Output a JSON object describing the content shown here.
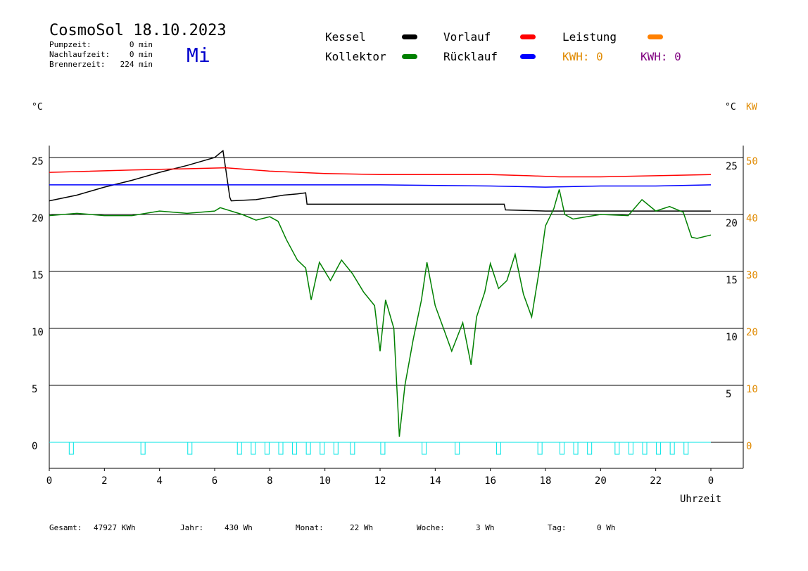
{
  "header": {
    "title": "CosmoSol 18.10.2023",
    "weekday": "Mi",
    "stats": [
      {
        "label": "Pumpzeit:",
        "value": "0 min"
      },
      {
        "label": "Nachlaufzeit:",
        "value": "0 min"
      },
      {
        "label": "Brennerzeit:",
        "value": "224 min"
      }
    ]
  },
  "legend": {
    "items": [
      {
        "label": "Kessel",
        "color": "#000000"
      },
      {
        "label": "Vorlauf",
        "color": "#ff0000"
      },
      {
        "label": "Leistung",
        "color": "#ff8000"
      },
      {
        "label": "Kollektor",
        "color": "#008000"
      },
      {
        "label": "Rücklauf",
        "color": "#0000ff"
      }
    ],
    "kwh": [
      {
        "text": "KWH: 0",
        "color": "#e08a00"
      },
      {
        "text": "KWH: 0",
        "color": "#800080"
      }
    ]
  },
  "axes": {
    "left_unit": "°C",
    "right_unit": "°C",
    "right_unit2": "KW",
    "x_title": "Uhrzeit"
  },
  "footer": [
    {
      "label": "Gesamt:",
      "value": "47927 KWh"
    },
    {
      "label": "Jahr:",
      "value": "430 Wh"
    },
    {
      "label": "Monat:",
      "value": "22 Wh"
    },
    {
      "label": "Woche:",
      "value": "3 Wh"
    },
    {
      "label": "Tag:",
      "value": "0 Wh"
    }
  ],
  "chart_data": {
    "type": "line",
    "x_unit": "hour",
    "xlim": [
      0,
      24
    ],
    "x_ticks": [
      "0",
      "2",
      "4",
      "6",
      "8",
      "10",
      "12",
      "14",
      "16",
      "18",
      "20",
      "22",
      "0"
    ],
    "ylim_left": [
      -2,
      26
    ],
    "y_ticks_left": [
      0,
      5,
      10,
      15,
      20,
      25
    ],
    "y_ticks_right_inner": [
      5,
      10,
      15,
      20,
      25
    ],
    "y_ticks_right_kw": [
      0,
      10,
      20,
      30,
      40,
      50
    ],
    "grid": "horizontal",
    "series": [
      {
        "name": "Kessel",
        "color": "#000000",
        "points": [
          [
            0,
            21.2
          ],
          [
            1,
            21.7
          ],
          [
            2,
            22.4
          ],
          [
            3,
            23.0
          ],
          [
            4,
            23.7
          ],
          [
            5,
            24.3
          ],
          [
            6,
            25.0
          ],
          [
            6.3,
            25.6
          ],
          [
            6.4,
            24.0
          ],
          [
            6.55,
            21.5
          ],
          [
            6.6,
            21.2
          ],
          [
            7.5,
            21.3
          ],
          [
            8.5,
            21.7
          ],
          [
            9.0,
            21.8
          ],
          [
            9.3,
            21.9
          ],
          [
            9.35,
            20.9
          ],
          [
            16.5,
            20.9
          ],
          [
            16.55,
            20.4
          ],
          [
            18,
            20.3
          ],
          [
            24,
            20.3
          ]
        ]
      },
      {
        "name": "Vorlauf",
        "color": "#ff0000",
        "points": [
          [
            0,
            23.7
          ],
          [
            3,
            23.9
          ],
          [
            6.4,
            24.1
          ],
          [
            8,
            23.8
          ],
          [
            10,
            23.6
          ],
          [
            12,
            23.5
          ],
          [
            14,
            23.5
          ],
          [
            16,
            23.5
          ],
          [
            17.4,
            23.4
          ],
          [
            18.5,
            23.3
          ],
          [
            20,
            23.3
          ],
          [
            22,
            23.4
          ],
          [
            24,
            23.5
          ]
        ]
      },
      {
        "name": "Rücklauf",
        "color": "#0000ff",
        "points": [
          [
            0,
            22.6
          ],
          [
            4,
            22.6
          ],
          [
            8,
            22.6
          ],
          [
            12,
            22.6
          ],
          [
            16,
            22.5
          ],
          [
            18,
            22.4
          ],
          [
            20,
            22.5
          ],
          [
            22,
            22.5
          ],
          [
            24,
            22.6
          ]
        ]
      },
      {
        "name": "Kollektor",
        "color": "#008000",
        "points": [
          [
            0,
            19.9
          ],
          [
            1,
            20.1
          ],
          [
            2,
            19.9
          ],
          [
            3,
            19.9
          ],
          [
            4,
            20.3
          ],
          [
            5,
            20.1
          ],
          [
            6,
            20.3
          ],
          [
            6.2,
            20.6
          ],
          [
            7,
            20.0
          ],
          [
            7.5,
            19.5
          ],
          [
            8,
            19.8
          ],
          [
            8.3,
            19.4
          ],
          [
            8.6,
            17.8
          ],
          [
            9.0,
            16.0
          ],
          [
            9.3,
            15.3
          ],
          [
            9.5,
            12.5
          ],
          [
            9.8,
            15.8
          ],
          [
            10.2,
            14.2
          ],
          [
            10.6,
            16.0
          ],
          [
            11.0,
            14.8
          ],
          [
            11.4,
            13.2
          ],
          [
            11.8,
            12.0
          ],
          [
            12.0,
            8.0
          ],
          [
            12.2,
            12.5
          ],
          [
            12.5,
            10.0
          ],
          [
            12.7,
            0.5
          ],
          [
            12.9,
            5.0
          ],
          [
            13.2,
            9.0
          ],
          [
            13.5,
            12.5
          ],
          [
            13.7,
            15.8
          ],
          [
            14.0,
            12.0
          ],
          [
            14.3,
            10.0
          ],
          [
            14.6,
            8.0
          ],
          [
            15.0,
            10.5
          ],
          [
            15.3,
            6.8
          ],
          [
            15.5,
            11.0
          ],
          [
            15.8,
            13.2
          ],
          [
            16.0,
            15.7
          ],
          [
            16.3,
            13.5
          ],
          [
            16.6,
            14.2
          ],
          [
            16.9,
            16.5
          ],
          [
            17.2,
            13.0
          ],
          [
            17.5,
            11.0
          ],
          [
            17.8,
            15.5
          ],
          [
            18.0,
            19.0
          ],
          [
            18.3,
            20.5
          ],
          [
            18.5,
            22.2
          ],
          [
            18.7,
            20.0
          ],
          [
            19.0,
            19.6
          ],
          [
            20.0,
            20.0
          ],
          [
            21.0,
            19.9
          ],
          [
            21.5,
            21.3
          ],
          [
            22.0,
            20.3
          ],
          [
            22.5,
            20.7
          ],
          [
            23.0,
            20.2
          ],
          [
            23.3,
            18.0
          ],
          [
            23.5,
            17.9
          ],
          [
            24.0,
            18.2
          ]
        ]
      }
    ],
    "pump_pulse_hours": [
      0.8,
      3.4,
      5.1,
      6.9,
      7.4,
      7.9,
      8.4,
      8.9,
      9.4,
      9.9,
      10.4,
      11.0,
      12.1,
      13.6,
      14.8,
      16.3,
      17.8,
      18.6,
      19.1,
      19.6,
      20.6,
      21.1,
      21.6,
      22.1,
      22.6,
      23.1
    ]
  }
}
